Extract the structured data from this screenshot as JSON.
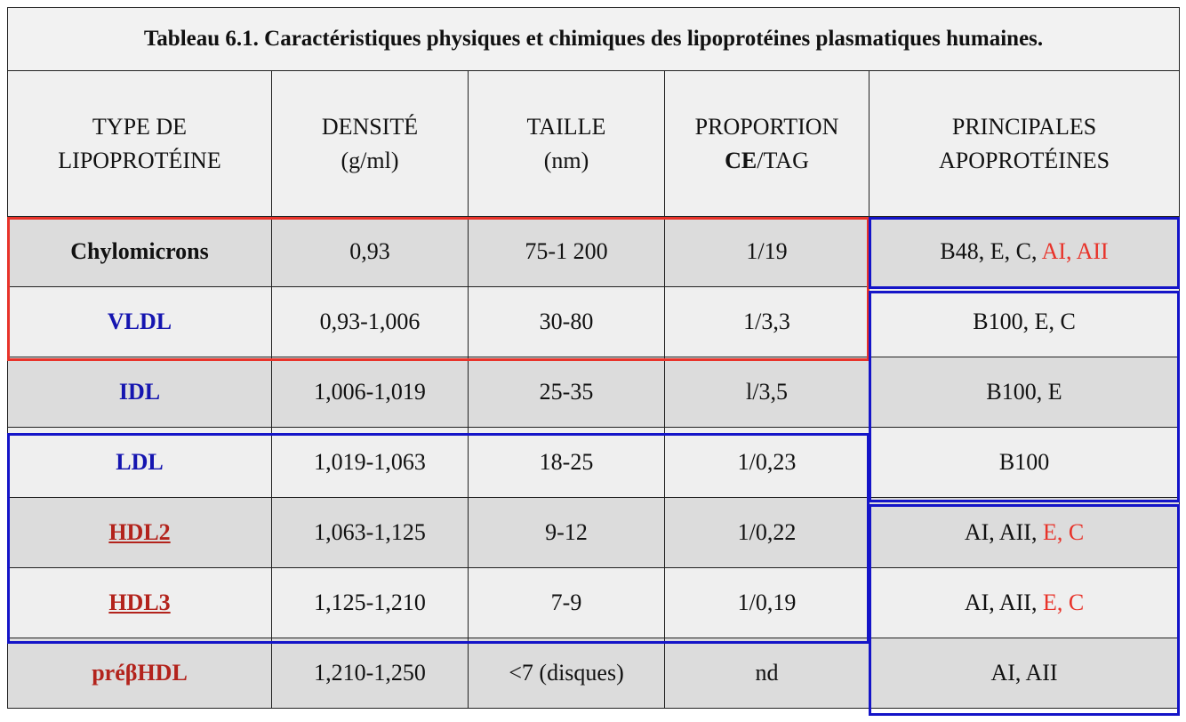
{
  "title": "Tableau 6.1. Caractéristiques physiques et chimiques des lipoprotéines plasmatiques humaines.",
  "header": [
    [
      "TYPE DE",
      "LIPOPROTÉINE"
    ],
    [
      "DENSITÉ",
      "(g/ml)"
    ],
    [
      "TAILLE",
      "(nm)"
    ],
    [
      "PROPORTION",
      "CE",
      "/TAG"
    ],
    [
      "PRINCIPALES",
      "APOPROTÉINES"
    ]
  ],
  "rows": [
    {
      "type": "Chylomicrons",
      "density": "0,93",
      "size": "75-1 200",
      "ratio": "1/19",
      "apo": [
        "B48, E, C,",
        "AI, AII"
      ]
    },
    {
      "type": "VLDL",
      "density": "0,93-1,006",
      "size": "30-80",
      "ratio": "1/3,3",
      "apo": [
        "B100, E, C"
      ]
    },
    {
      "type": "IDL",
      "density": "1,006-1,019",
      "size": "25-35",
      "ratio": "l/3,5",
      "apo": [
        "B100, E"
      ]
    },
    {
      "type": "LDL",
      "density": "1,019-1,063",
      "size": "18-25",
      "ratio": "1/0,23",
      "apo": [
        "B100"
      ]
    },
    {
      "type": "HDL2",
      "density": "1,063-1,125",
      "size": "9-12",
      "ratio": "1/0,22",
      "apo": [
        "AI, AII,",
        "E, C"
      ]
    },
    {
      "type": "HDL3",
      "density": "1,125-1,210",
      "size": "7-9",
      "ratio": "1/0,19",
      "apo": [
        "AI, AII,",
        "E, C"
      ]
    },
    {
      "type": "préβHDL",
      "density": "1,210-1,250",
      "size": "<7 (disques)",
      "ratio": "nd",
      "apo": [
        "AI, AII"
      ]
    }
  ]
}
